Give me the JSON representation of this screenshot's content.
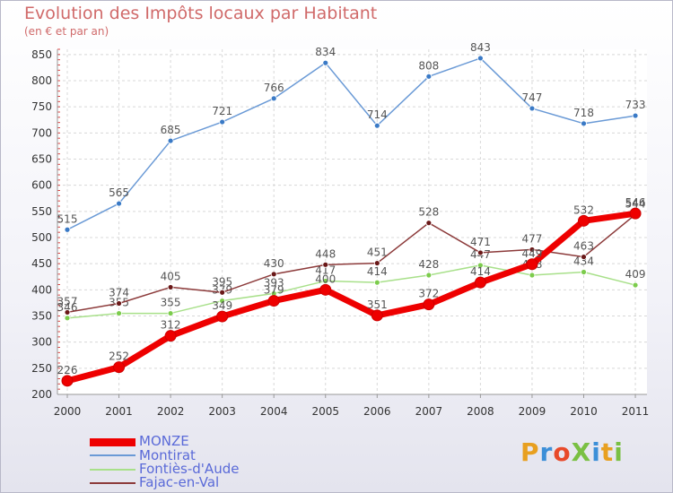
{
  "chart_data": {
    "type": "line",
    "title": "Evolution des Impôts locaux par Habitant",
    "subtitle": "(en € et par an)",
    "categories": [
      "2000",
      "2001",
      "2002",
      "2003",
      "2004",
      "2005",
      "2006",
      "2007",
      "2008",
      "2009",
      "2010",
      "2011"
    ],
    "yticks": [
      200,
      250,
      300,
      350,
      400,
      450,
      500,
      550,
      600,
      650,
      700,
      750,
      800,
      850
    ],
    "ylim": [
      200,
      860
    ],
    "series": [
      {
        "name": "Montirat",
        "color": "#6a9ad6",
        "marker": "#3a7ac6",
        "values": [
          515,
          565,
          685,
          721,
          766,
          834,
          714,
          808,
          843,
          747,
          718,
          733
        ]
      },
      {
        "name": "Fontiès-d'Aude",
        "color": "#a8e08a",
        "marker": "#7ccc4c",
        "values": [
          346,
          355,
          355,
          379,
          393,
          417,
          414,
          428,
          447,
          428,
          434,
          409
        ]
      },
      {
        "name": "Fajac-en-Val",
        "color": "#8c3a3a",
        "marker": "#6a1818",
        "values": [
          357,
          374,
          405,
          395,
          430,
          448,
          451,
          528,
          471,
          477,
          463,
          544
        ]
      },
      {
        "name": "MONZE",
        "color": "#ee0000",
        "marker": "#ee0000",
        "values": [
          226,
          252,
          312,
          349,
          379,
          400,
          351,
          372,
          414,
          449,
          532,
          546
        ]
      }
    ],
    "legend_order": [
      "MONZE",
      "Montirat",
      "Fontiès-d'Aude",
      "Fajac-en-Val"
    ]
  },
  "legend": {
    "monze": "MONZE",
    "montirat": "Montirat",
    "fonties": "Fontiès-d'Aude",
    "fajac": "Fajac-en-Val"
  },
  "logo": {
    "text": "ProXiti",
    "colors": [
      "#e8a020",
      "#3c8fd8",
      "#e84a2a",
      "#7ac043",
      "#3c8fd8",
      "#e8a020",
      "#7ac043"
    ]
  }
}
